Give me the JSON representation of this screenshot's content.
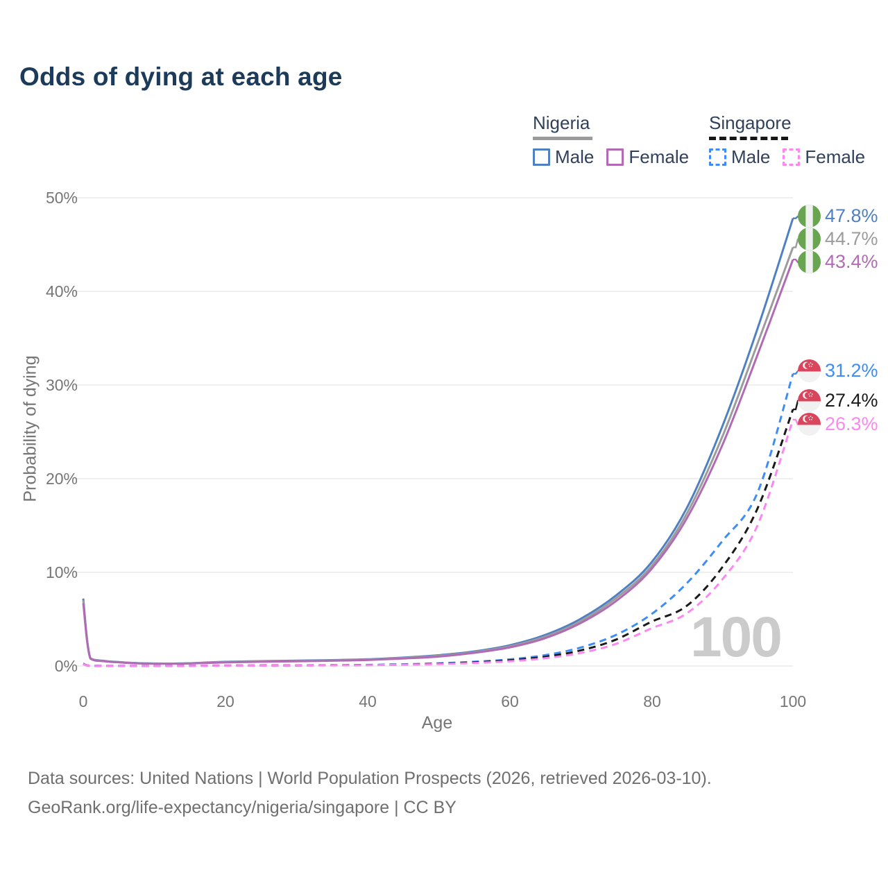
{
  "header": {
    "title": "Odds of dying at each age"
  },
  "legend": {
    "position": "top-right",
    "groups": [
      {
        "country": "Nigeria",
        "style": "solid",
        "underline_color": "#9b9b9b",
        "items": [
          {
            "label": "Male",
            "color": "#4f81c2"
          },
          {
            "label": "Female",
            "color": "#b16bb4"
          }
        ]
      },
      {
        "country": "Singapore",
        "style": "dashed",
        "underline_color": "#161616",
        "items": [
          {
            "label": "Male",
            "color": "#3e8df6"
          },
          {
            "label": "Female",
            "color": "#fb87f0"
          }
        ]
      }
    ]
  },
  "chart_data": {
    "type": "line",
    "title": "Odds of dying at each age",
    "xlabel": "Age",
    "ylabel": "Probability of dying",
    "xlim": [
      0,
      100
    ],
    "ylim": [
      0,
      50
    ],
    "grid": true,
    "xticks": [
      "0",
      "20",
      "40",
      "60",
      "80",
      "100"
    ],
    "yticks": [
      "0%",
      "10%",
      "20%",
      "30%",
      "40%",
      "50%"
    ],
    "watermark": "100",
    "series": [
      {
        "name": "Nigeria Male",
        "country": "Nigeria",
        "sex": "Male",
        "color": "#4f81c2",
        "line_style": "solid",
        "flag": "nigeria",
        "end_value": 47.8,
        "end_label": "47.8%",
        "points": [
          [
            0,
            7.2
          ],
          [
            1,
            0.85
          ],
          [
            3,
            0.55
          ],
          [
            5,
            0.42
          ],
          [
            8,
            0.3
          ],
          [
            12,
            0.26
          ],
          [
            15,
            0.3
          ],
          [
            20,
            0.45
          ],
          [
            25,
            0.52
          ],
          [
            30,
            0.57
          ],
          [
            35,
            0.63
          ],
          [
            40,
            0.72
          ],
          [
            45,
            0.9
          ],
          [
            50,
            1.15
          ],
          [
            55,
            1.55
          ],
          [
            60,
            2.2
          ],
          [
            65,
            3.3
          ],
          [
            70,
            5.0
          ],
          [
            75,
            7.5
          ],
          [
            80,
            11.0
          ],
          [
            85,
            16.8
          ],
          [
            90,
            25.5
          ],
          [
            95,
            36.0
          ],
          [
            100,
            47.8
          ]
        ]
      },
      {
        "name": "Nigeria Both sexes",
        "country": "Nigeria",
        "sex": "Both",
        "color": "#9c9c9c",
        "line_style": "solid",
        "flag": "nigeria",
        "end_value": 44.7,
        "end_label": "44.7%",
        "points": [
          [
            0,
            7.0
          ],
          [
            1,
            0.83
          ],
          [
            3,
            0.53
          ],
          [
            5,
            0.41
          ],
          [
            8,
            0.29
          ],
          [
            12,
            0.25
          ],
          [
            15,
            0.29
          ],
          [
            20,
            0.42
          ],
          [
            25,
            0.49
          ],
          [
            30,
            0.54
          ],
          [
            35,
            0.6
          ],
          [
            40,
            0.68
          ],
          [
            45,
            0.85
          ],
          [
            50,
            1.08
          ],
          [
            55,
            1.47
          ],
          [
            60,
            2.08
          ],
          [
            65,
            3.12
          ],
          [
            70,
            4.75
          ],
          [
            75,
            7.2
          ],
          [
            80,
            10.6
          ],
          [
            85,
            16.2
          ],
          [
            90,
            24.4
          ],
          [
            95,
            34.4
          ],
          [
            100,
            44.7
          ]
        ]
      },
      {
        "name": "Nigeria Female",
        "country": "Nigeria",
        "sex": "Female",
        "color": "#b16bb4",
        "line_style": "solid",
        "flag": "nigeria",
        "end_value": 43.4,
        "end_label": "43.4%",
        "points": [
          [
            0,
            6.7
          ],
          [
            1,
            0.8
          ],
          [
            3,
            0.5
          ],
          [
            5,
            0.39
          ],
          [
            8,
            0.27
          ],
          [
            12,
            0.24
          ],
          [
            15,
            0.27
          ],
          [
            20,
            0.38
          ],
          [
            25,
            0.45
          ],
          [
            30,
            0.5
          ],
          [
            35,
            0.56
          ],
          [
            40,
            0.64
          ],
          [
            45,
            0.8
          ],
          [
            50,
            1.0
          ],
          [
            55,
            1.4
          ],
          [
            60,
            1.97
          ],
          [
            65,
            2.95
          ],
          [
            70,
            4.55
          ],
          [
            75,
            6.9
          ],
          [
            80,
            10.3
          ],
          [
            85,
            15.7
          ],
          [
            90,
            23.5
          ],
          [
            95,
            33.2
          ],
          [
            100,
            43.4
          ]
        ]
      },
      {
        "name": "Singapore Male",
        "country": "Singapore",
        "sex": "Male",
        "color": "#3e8df6",
        "line_style": "dashed",
        "flag": "singapore",
        "end_value": 31.2,
        "end_label": "31.2%",
        "points": [
          [
            0,
            0.25
          ],
          [
            1,
            0.03
          ],
          [
            5,
            0.01
          ],
          [
            10,
            0.01
          ],
          [
            15,
            0.03
          ],
          [
            20,
            0.05
          ],
          [
            25,
            0.06
          ],
          [
            30,
            0.07
          ],
          [
            35,
            0.09
          ],
          [
            40,
            0.12
          ],
          [
            45,
            0.18
          ],
          [
            50,
            0.28
          ],
          [
            55,
            0.45
          ],
          [
            60,
            0.7
          ],
          [
            65,
            1.15
          ],
          [
            70,
            1.95
          ],
          [
            75,
            3.3
          ],
          [
            80,
            5.5
          ],
          [
            85,
            8.8
          ],
          [
            90,
            13.3
          ],
          [
            95,
            18.5
          ],
          [
            100,
            31.2
          ]
        ]
      },
      {
        "name": "Singapore Both sexes",
        "country": "Singapore",
        "sex": "Both",
        "color": "#1a1a1a",
        "line_style": "dashed",
        "flag": "singapore",
        "end_value": 27.4,
        "end_label": "27.4%",
        "points": [
          [
            0,
            0.22
          ],
          [
            1,
            0.02
          ],
          [
            5,
            0.01
          ],
          [
            10,
            0.01
          ],
          [
            15,
            0.02
          ],
          [
            20,
            0.04
          ],
          [
            25,
            0.05
          ],
          [
            30,
            0.06
          ],
          [
            35,
            0.08
          ],
          [
            40,
            0.1
          ],
          [
            45,
            0.15
          ],
          [
            50,
            0.24
          ],
          [
            55,
            0.38
          ],
          [
            60,
            0.6
          ],
          [
            65,
            0.98
          ],
          [
            70,
            1.65
          ],
          [
            75,
            2.8
          ],
          [
            80,
            4.7
          ],
          [
            85,
            6.4
          ],
          [
            90,
            10.5
          ],
          [
            95,
            16.8
          ],
          [
            100,
            27.4
          ]
        ]
      },
      {
        "name": "Singapore Female",
        "country": "Singapore",
        "sex": "Female",
        "color": "#fb87f0",
        "line_style": "dashed",
        "flag": "singapore",
        "end_value": 26.3,
        "end_label": "26.3%",
        "points": [
          [
            0,
            0.2
          ],
          [
            1,
            0.02
          ],
          [
            5,
            0.01
          ],
          [
            10,
            0.01
          ],
          [
            15,
            0.02
          ],
          [
            20,
            0.03
          ],
          [
            25,
            0.04
          ],
          [
            30,
            0.05
          ],
          [
            35,
            0.07
          ],
          [
            40,
            0.09
          ],
          [
            45,
            0.13
          ],
          [
            50,
            0.2
          ],
          [
            55,
            0.32
          ],
          [
            60,
            0.5
          ],
          [
            65,
            0.82
          ],
          [
            70,
            1.38
          ],
          [
            75,
            2.35
          ],
          [
            80,
            4.0
          ],
          [
            85,
            5.6
          ],
          [
            90,
            9.2
          ],
          [
            95,
            15.0
          ],
          [
            100,
            26.3
          ]
        ]
      }
    ]
  },
  "footer": {
    "line1": "Data sources: United Nations | World Population Prospects (2026, retrieved 2026-03-10).",
    "line2": "GeoRank.org/life-expectancy/nigeria/singapore | CC BY"
  }
}
